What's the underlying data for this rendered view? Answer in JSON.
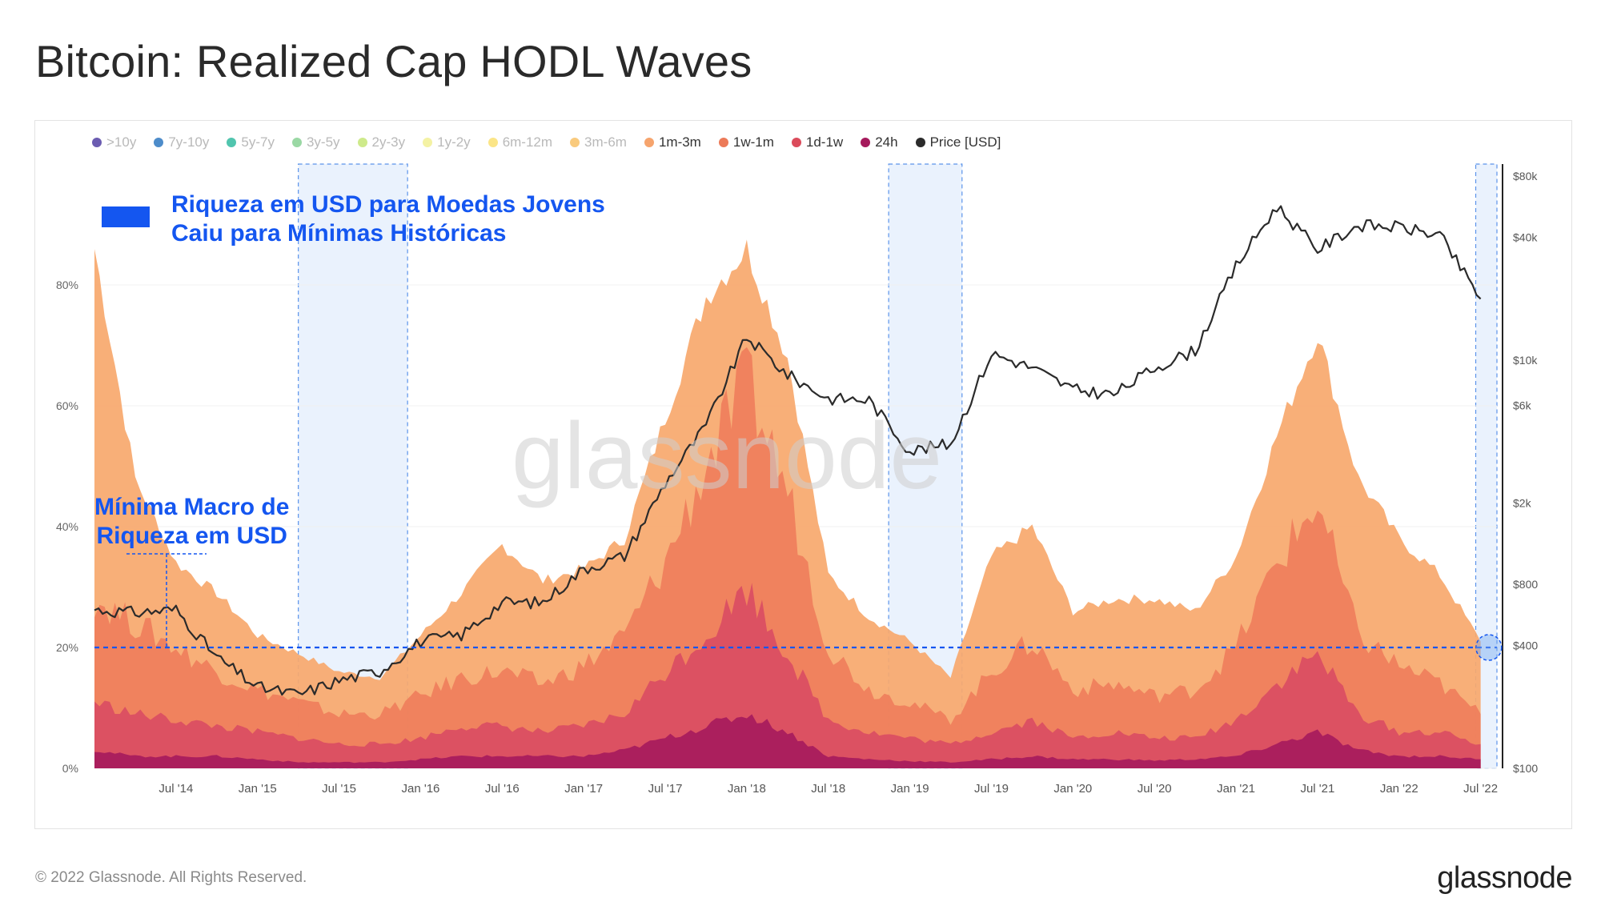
{
  "header": {
    "title": "Bitcoin: Realized Cap HODL Waves"
  },
  "legend": [
    {
      "label": ">10y",
      "color": "#5b4aa8",
      "active": false
    },
    {
      "label": "7y-10y",
      "color": "#3a7fc4",
      "active": false
    },
    {
      "label": "5y-7y",
      "color": "#3ebfa5",
      "active": false
    },
    {
      "label": "3y-5y",
      "color": "#8fd49a",
      "active": false
    },
    {
      "label": "2y-3y",
      "color": "#c9e87e",
      "active": false
    },
    {
      "label": "1y-2y",
      "color": "#f3f19a",
      "active": false
    },
    {
      "label": "6m-12m",
      "color": "#fbe27a",
      "active": false
    },
    {
      "label": "3m-6m",
      "color": "#f8c46f",
      "active": false
    },
    {
      "label": "1m-3m",
      "color": "#f6a46d",
      "active": true
    },
    {
      "label": "1w-1m",
      "color": "#ec7a58",
      "active": true
    },
    {
      "label": "1d-1w",
      "color": "#db4b5b",
      "active": true
    },
    {
      "label": "24h",
      "color": "#a51a5c",
      "active": true
    },
    {
      "label": "Price [USD]",
      "color": "#2b2b2b",
      "active": true
    }
  ],
  "annotations": {
    "top_line1": "Riqueza em USD para Moedas Jovens",
    "top_line2": "Caiu para Mínimas Históricas",
    "left_line1": "Mínima Macro de",
    "left_line2": "Riqueza em USD"
  },
  "watermark": "glassnode",
  "footer": {
    "copyright": "© 2022 Glassnode. All Rights Reserved.",
    "brand": "glassnode"
  },
  "colors": {
    "accent": "#1456f0",
    "highlight": "#eaf2fd",
    "price": "#2b2b2b"
  },
  "chart_data": {
    "type": "area",
    "title": "Bitcoin: Realized Cap HODL Waves",
    "x_ticks": [
      "Jul '14",
      "Jan '15",
      "Jul '15",
      "Jan '16",
      "Jul '16",
      "Jan '17",
      "Jul '17",
      "Jan '18",
      "Jul '18",
      "Jan '19",
      "Jul '19",
      "Jan '20",
      "Jul '20",
      "Jan '21",
      "Jul '21",
      "Jan '22",
      "Jul '22"
    ],
    "y_left_ticks": [
      "0%",
      "20%",
      "40%",
      "60%",
      "80%"
    ],
    "y_left_range": [
      0,
      100
    ],
    "y_right_ticks": [
      "$100",
      "$400",
      "$800",
      "$2k",
      "$6k",
      "$10k",
      "$40k",
      "$80k"
    ],
    "y_right_range": [
      100,
      80000
    ],
    "y_right_scale": "log",
    "x": [
      2014.0,
      2014.25,
      2014.5,
      2014.75,
      2015.0,
      2015.25,
      2015.5,
      2015.75,
      2016.0,
      2016.25,
      2016.5,
      2016.75,
      2017.0,
      2017.25,
      2017.5,
      2017.75,
      2018.0,
      2018.25,
      2018.5,
      2018.75,
      2019.0,
      2019.25,
      2019.5,
      2019.75,
      2020.0,
      2020.25,
      2020.5,
      2020.75,
      2021.0,
      2021.25,
      2021.5,
      2021.75,
      2022.0,
      2022.25,
      2022.5
    ],
    "series": [
      {
        "name": "1m-3m",
        "values": [
          86,
          48,
          34,
          29,
          22,
          19,
          16,
          15,
          22,
          29,
          37,
          31,
          33,
          38,
          58,
          78,
          86,
          68,
          32,
          25,
          21,
          15,
          35,
          40,
          26,
          28,
          28,
          26,
          35,
          55,
          72,
          48,
          38,
          32,
          21
        ]
      },
      {
        "name": "1w-1m",
        "values": [
          28,
          24,
          20,
          16,
          13,
          11,
          9,
          9,
          12,
          15,
          16,
          14,
          17,
          22,
          34,
          50,
          64,
          46,
          20,
          13,
          11,
          8,
          16,
          21,
          13,
          14,
          12,
          13,
          20,
          34,
          44,
          22,
          17,
          14,
          9
        ]
      },
      {
        "name": "1d-1w",
        "values": [
          11,
          9,
          8,
          7,
          6,
          5,
          4,
          4,
          5,
          7,
          7,
          6,
          7,
          9,
          16,
          22,
          30,
          19,
          8,
          6,
          5,
          4,
          6,
          8,
          5,
          6,
          5,
          5,
          8,
          14,
          19,
          9,
          6,
          6,
          4
        ]
      },
      {
        "name": "24h",
        "values": [
          3,
          2,
          2,
          2,
          1.5,
          1,
          1,
          1,
          1.5,
          2,
          2,
          2,
          2,
          3,
          5,
          7,
          9,
          6,
          2,
          1.5,
          1.2,
          1,
          1.5,
          2,
          1.5,
          1.5,
          1.3,
          1.5,
          2,
          4,
          6,
          3,
          2,
          2,
          1.5
        ]
      },
      {
        "name": "Price [USD]",
        "values": [
          600,
          580,
          600,
          350,
          250,
          230,
          270,
          300,
          420,
          450,
          650,
          650,
          950,
          1100,
          2500,
          4800,
          13000,
          8500,
          6500,
          6400,
          3600,
          3900,
          10800,
          9200,
          7200,
          6800,
          9200,
          11200,
          29000,
          57000,
          35000,
          46000,
          45000,
          41000,
          20000
        ]
      }
    ],
    "threshold_pct": 20,
    "highlight_ranges": [
      [
        2015.25,
        2015.92
      ],
      [
        2018.87,
        2019.32
      ],
      [
        2022.47,
        2022.6
      ]
    ],
    "grid": true
  }
}
